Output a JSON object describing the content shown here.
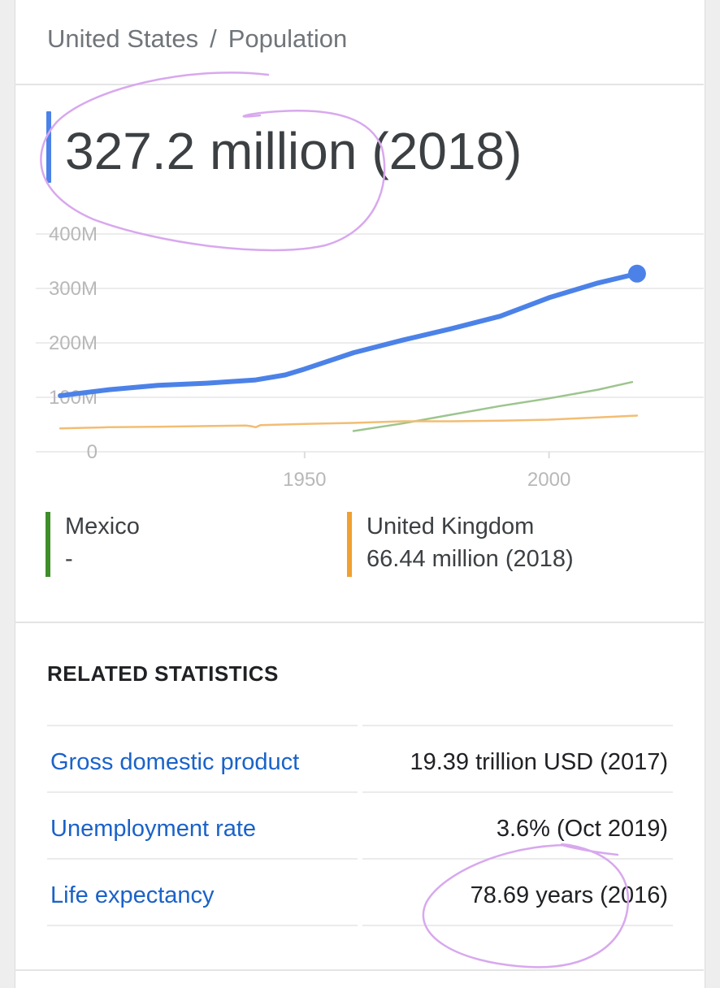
{
  "breadcrumb": {
    "country": "United States",
    "separator": "/",
    "metric": "Population"
  },
  "headline": {
    "value": "327.2 million",
    "year": "(2018)"
  },
  "colors": {
    "united_states": "#4c82e8",
    "mexico": "#9cc58e",
    "mexico_legend": "#3e8e2a",
    "united_kingdom": "#f2bd73",
    "united_kingdom_legend": "#f0a030",
    "annotation": "#d8a8ee"
  },
  "chart_data": {
    "type": "line",
    "x_ticks": [
      "1950",
      "2000"
    ],
    "y_ticks": [
      "0",
      "100M",
      "200M",
      "300M",
      "400M"
    ],
    "xlim": [
      1896,
      2024
    ],
    "ylim": [
      0,
      400
    ],
    "y_unit": "million",
    "grid": "horizontal",
    "series": [
      {
        "key": "united_states",
        "x": [
          1900,
          1910,
          1920,
          1930,
          1940,
          1946,
          1950,
          1960,
          1970,
          1980,
          1990,
          2000,
          2010,
          2018
        ],
        "y": [
          103,
          114,
          122,
          126,
          132,
          141,
          152,
          182,
          205,
          226,
          249,
          283,
          310,
          327.2
        ],
        "end_marker": true
      },
      {
        "key": "mexico",
        "x": [
          1960,
          1970,
          1980,
          1990,
          2000,
          2010,
          2017
        ],
        "y": [
          38,
          52,
          68,
          84,
          98,
          114,
          128
        ]
      },
      {
        "key": "united_kingdom",
        "x": [
          1900,
          1910,
          1920,
          1938,
          1939,
          1940,
          1941,
          1950,
          1960,
          1970,
          1980,
          1990,
          2000,
          2010,
          2018
        ],
        "y": [
          43,
          45,
          46,
          48,
          47,
          45,
          49,
          51,
          53,
          56,
          56,
          57,
          59,
          63,
          66.44
        ]
      }
    ]
  },
  "legend": [
    {
      "name": "Mexico",
      "value": "-"
    },
    {
      "name": "United Kingdom",
      "value": "66.44 million (2018)"
    }
  ],
  "related": {
    "title": "RELATED STATISTICS",
    "rows": [
      {
        "label": "Gross domestic product",
        "value": "19.39 trillion USD (2017)"
      },
      {
        "label": "Unemployment rate",
        "value": "3.6% (Oct 2019)"
      },
      {
        "label": "Life expectancy",
        "value": "78.69 years (2016)"
      }
    ]
  }
}
